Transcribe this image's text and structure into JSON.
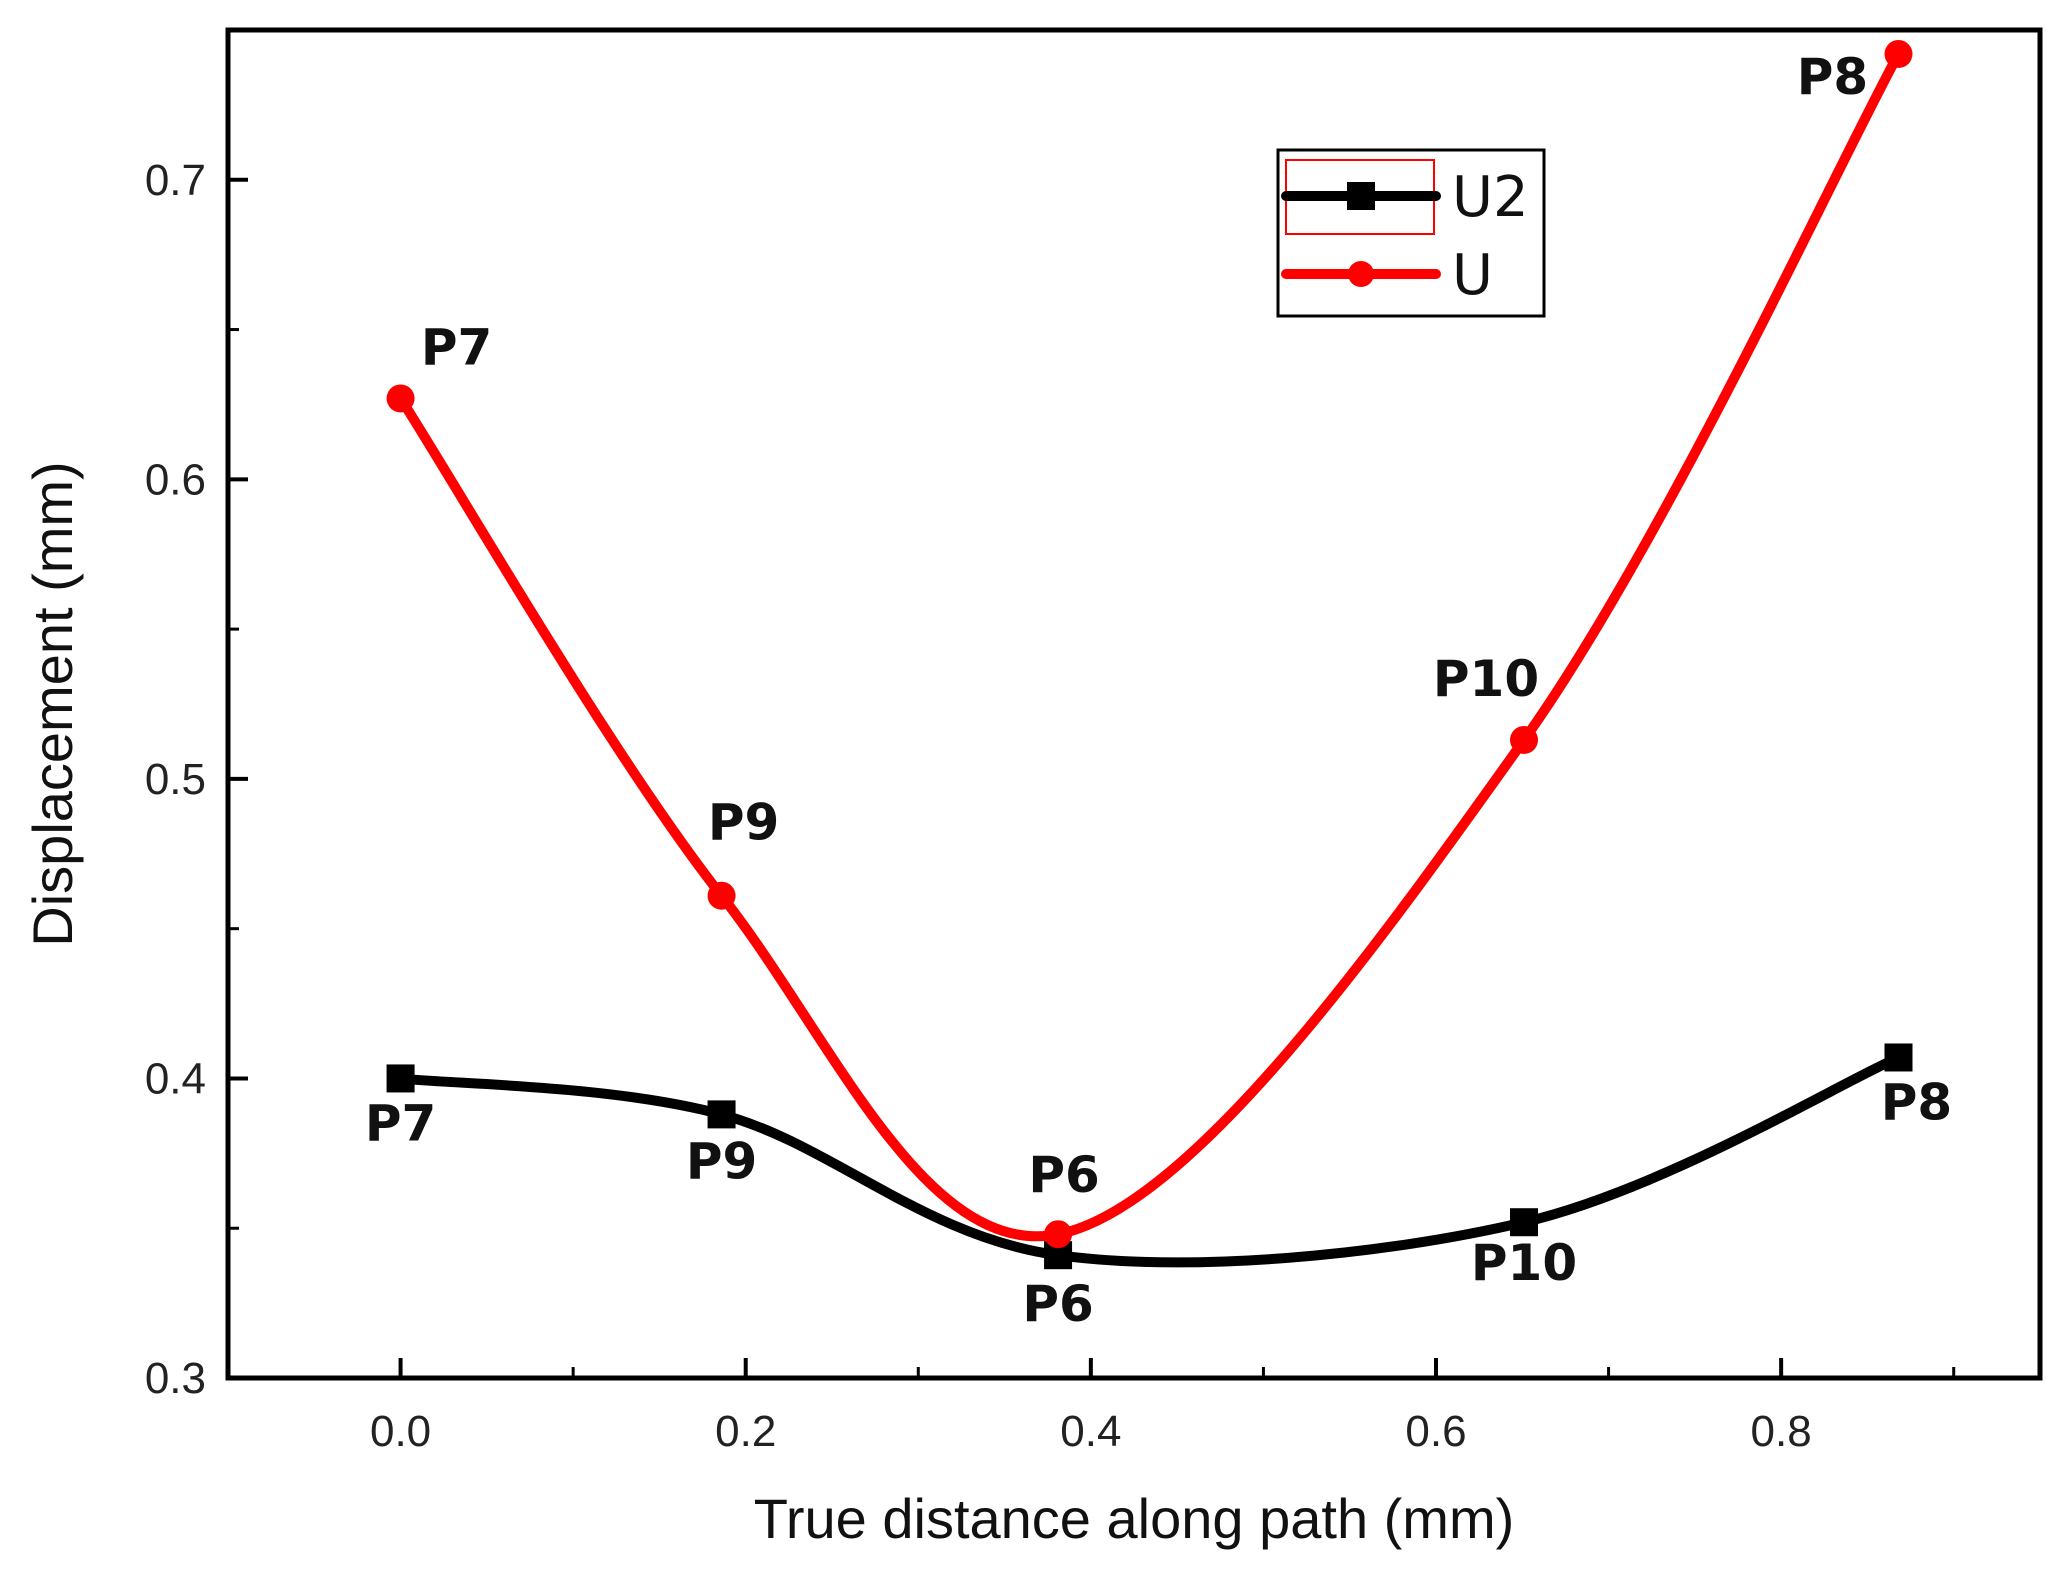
{
  "chart_data": {
    "type": "line",
    "title": "",
    "xlabel": "True distance along path  (mm)",
    "ylabel": "Displacement (mm)",
    "xlim": [
      -0.1,
      0.95
    ],
    "ylim": [
      0.3,
      0.75
    ],
    "x_ticks": [
      0.0,
      0.2,
      0.4,
      0.6,
      0.8
    ],
    "x_tick_labels": [
      "0.0",
      "0.2",
      "0.4",
      "0.6",
      "0.8"
    ],
    "y_ticks": [
      0.3,
      0.4,
      0.5,
      0.6,
      0.7
    ],
    "y_tick_labels": [
      "0.3",
      "0.4",
      "0.5",
      "0.6",
      "0.7"
    ],
    "grid": false,
    "legend_position": "top-right",
    "series": [
      {
        "name": "U2",
        "color": "#000000",
        "marker": "square",
        "x": [
          0.0,
          0.186,
          0.381,
          0.651,
          0.868
        ],
        "values": [
          0.4,
          0.388,
          0.341,
          0.352,
          0.407
        ],
        "point_labels": [
          "P7",
          "P9",
          "P6",
          "P10",
          "P8"
        ]
      },
      {
        "name": "U",
        "color": "#ff0000",
        "marker": "circle",
        "x": [
          0.0,
          0.186,
          0.381,
          0.651,
          0.868
        ],
        "values": [
          0.627,
          0.461,
          0.348,
          0.513,
          0.742
        ],
        "point_labels": [
          "P7",
          "P9",
          "P6",
          "P10",
          "P8"
        ]
      }
    ]
  }
}
